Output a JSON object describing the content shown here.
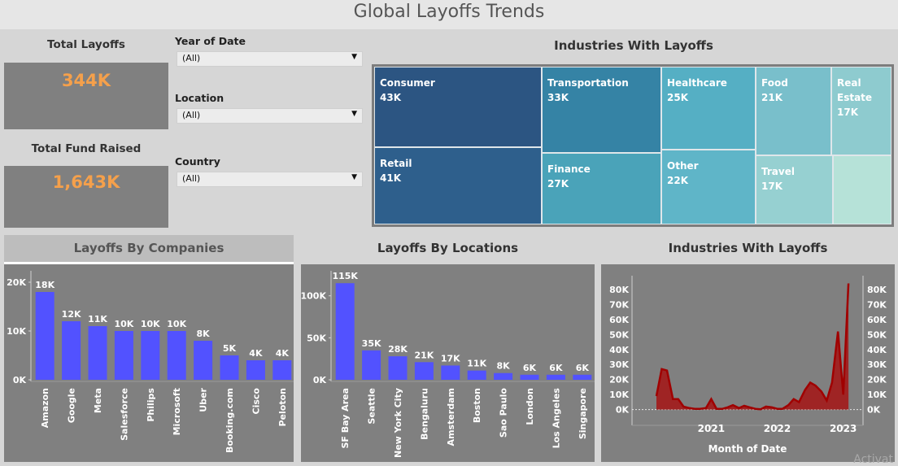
{
  "page_title": "Global Layoffs Trends",
  "kpis": {
    "total_layoffs_label": "Total Layoffs",
    "total_layoffs_value": "344K",
    "total_fund_label": "Total Fund Raised",
    "total_fund_value": "1,643K",
    "value_color": "#f5a04b"
  },
  "filters": {
    "year_label": "Year of Date",
    "year_value": "(All)",
    "location_label": "Location",
    "location_value": "(All)",
    "country_label": "Country",
    "country_value": "(All)"
  },
  "treemap": {
    "title": "Industries With Layoffs",
    "cells": [
      {
        "name": "Consumer",
        "value": "43K",
        "color": "#2c5582"
      },
      {
        "name": "Retail",
        "value": "41K",
        "color": "#2e5f8c"
      },
      {
        "name": "Transportation",
        "value": "33K",
        "color": "#3583a5"
      },
      {
        "name": "Finance",
        "value": "27K",
        "color": "#4aa3b9"
      },
      {
        "name": "Healthcare",
        "value": "25K",
        "color": "#55afc4"
      },
      {
        "name": "Other",
        "value": "22K",
        "color": "#5fb5c8"
      },
      {
        "name": "Food",
        "value": "21K",
        "color": "#79bfcb"
      },
      {
        "name": "Travel",
        "value": "17K",
        "color": "#96d0d1"
      },
      {
        "name": "Real Estate",
        "value": "17K",
        "color": "#8ecbcf"
      },
      {
        "name": "",
        "value": "",
        "color": "#b6e2d8"
      }
    ]
  },
  "chart_data": [
    {
      "type": "bar",
      "title": "Layoffs By Companies",
      "categories": [
        "Amazon",
        "Google",
        "Meta",
        "Salesforce",
        "Philips",
        "Microsoft",
        "Uber",
        "Booking.com",
        "Cisco",
        "Peloton"
      ],
      "values": [
        18000,
        12000,
        11000,
        10000,
        10000,
        10000,
        8000,
        5000,
        4000,
        4000
      ],
      "data_labels": [
        "18K",
        "12K",
        "11K",
        "10K",
        "10K",
        "10K",
        "8K",
        "5K",
        "4K",
        "4K"
      ],
      "y_ticks": [
        0,
        10000,
        20000
      ],
      "y_tick_labels": [
        "0K",
        "10K",
        "20K"
      ],
      "ylim": [
        0,
        21000
      ],
      "bar_color": "#5252ff",
      "grid": false
    },
    {
      "type": "bar",
      "title": "Layoffs By Locations",
      "categories": [
        "SF Bay Area",
        "Seattle",
        "New York City",
        "Bengaluru",
        "Amsterdam",
        "Boston",
        "Sao Paulo",
        "London",
        "Los Angeles",
        "Singapore"
      ],
      "values": [
        115000,
        35000,
        28000,
        21000,
        17000,
        11000,
        8000,
        6000,
        6000,
        6000
      ],
      "data_labels": [
        "115K",
        "35K",
        "28K",
        "21K",
        "17K",
        "11K",
        "8K",
        "6K",
        "6K",
        "6K"
      ],
      "y_ticks": [
        0,
        50000,
        100000
      ],
      "y_tick_labels": [
        "0K",
        "50K",
        "100K"
      ],
      "ylim": [
        0,
        122000
      ],
      "bar_color": "#5252ff",
      "grid": false
    },
    {
      "type": "area",
      "title": "Industries With Layoffs",
      "xlabel": "Month of Date",
      "x_tick_labels": [
        "2021",
        "2022",
        "2023"
      ],
      "x_ticks": [
        2021.0,
        2022.0,
        2023.0
      ],
      "xlim": [
        2019.8,
        2023.3
      ],
      "y_ticks": [
        0,
        10000,
        20000,
        30000,
        40000,
        50000,
        60000,
        70000,
        80000
      ],
      "y_tick_labels": [
        "0K",
        "10K",
        "20K",
        "30K",
        "40K",
        "50K",
        "60K",
        "70K",
        "80K"
      ],
      "ylim": [
        -4000,
        87000
      ],
      "line_color": "#a00000",
      "fill_color": "#a41414",
      "x": [
        2020.17,
        2020.25,
        2020.33,
        2020.42,
        2020.5,
        2020.58,
        2020.67,
        2020.75,
        2020.83,
        2020.92,
        2021.0,
        2021.08,
        2021.17,
        2021.25,
        2021.33,
        2021.42,
        2021.5,
        2021.58,
        2021.67,
        2021.75,
        2021.83,
        2021.92,
        2022.0,
        2022.08,
        2022.17,
        2022.25,
        2022.33,
        2022.42,
        2022.5,
        2022.58,
        2022.67,
        2022.75,
        2022.83,
        2022.92,
        2023.0,
        2023.08
      ],
      "y": [
        9000,
        27000,
        26000,
        7000,
        7000,
        2000,
        1000,
        500,
        500,
        1000,
        7000,
        500,
        500,
        1500,
        3000,
        1000,
        2500,
        1500,
        500,
        200,
        2000,
        1500,
        500,
        500,
        3000,
        7000,
        5000,
        13000,
        18000,
        16000,
        12000,
        6000,
        18000,
        52000,
        10000,
        84000
      ]
    }
  ],
  "watermark": "Activat"
}
